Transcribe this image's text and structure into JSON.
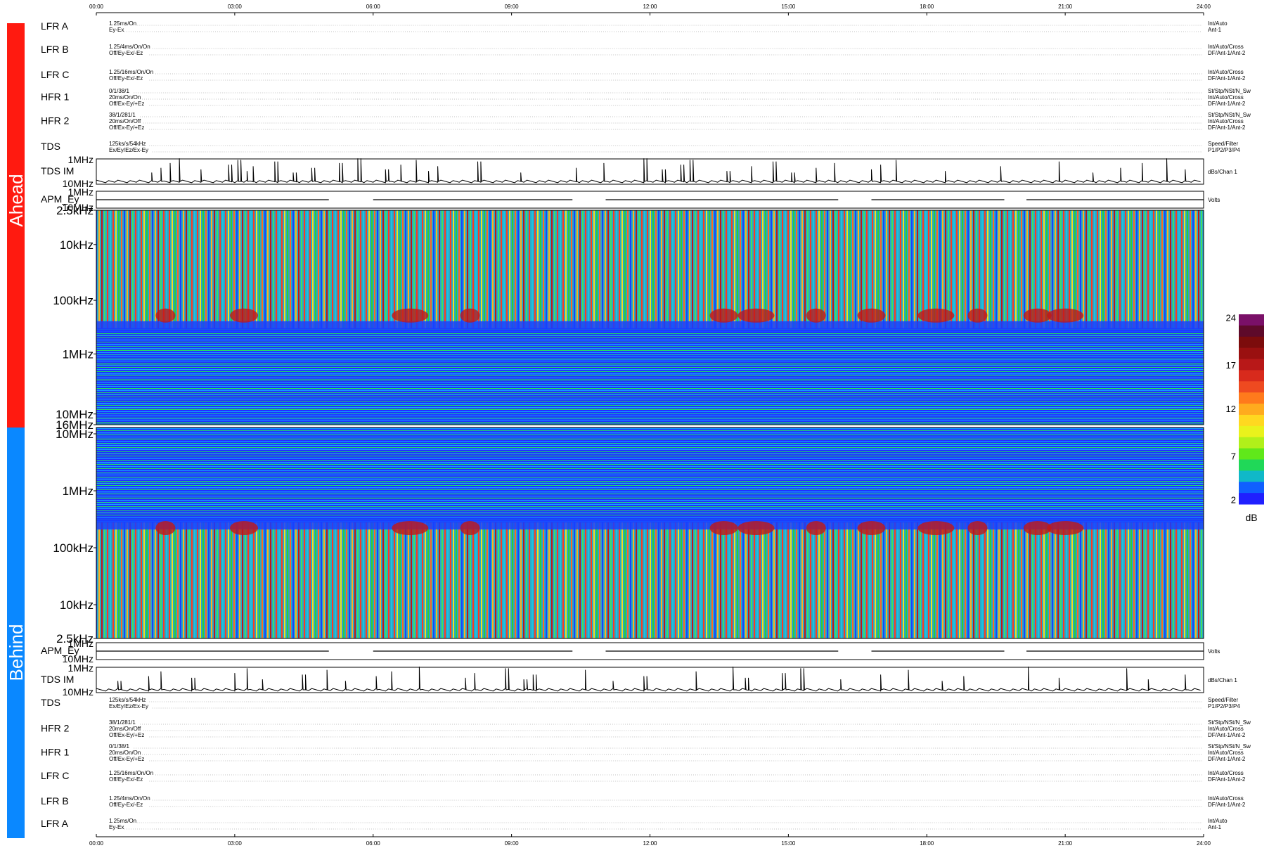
{
  "time_axis": {
    "ticks": [
      "00:00",
      "03:00",
      "06:00",
      "09:00",
      "12:00",
      "15:00",
      "18:00",
      "21:00",
      "24:00"
    ]
  },
  "sections": {
    "ahead": {
      "label": "Ahead",
      "color": "#ff1a10"
    },
    "behind": {
      "label": "Behind",
      "color": "#0a88ff"
    }
  },
  "instrument_rows": {
    "ahead": [
      {
        "name": "LFR A",
        "left": [
          "1.25ms/On",
          "Ey-Ex"
        ],
        "right": [
          "Int/Auto",
          "Ant-1"
        ]
      },
      {
        "name": "LFR B",
        "left": [
          "1.25/4ms/On/On",
          "Off/Ey-Ex/-Ez"
        ],
        "right": [
          "Int/Auto/Cross",
          "DF/Ant-1/Ant-2"
        ]
      },
      {
        "name": "LFR C",
        "left": [
          "1.25/16ms/On/On",
          "Off/Ey-Ex/-Ez"
        ],
        "right": [
          "Int/Auto/Cross",
          "DF/Ant-1/Ant-2"
        ]
      },
      {
        "name": "HFR 1",
        "left": [
          "0/1/38/1",
          "20ms/On/On",
          "Off/Ex-Ey/+Ez"
        ],
        "right": [
          "St/Stp/NSt/N_Sw",
          "Int/Auto/Cross",
          "DF/Ant-1/Ant-2"
        ]
      },
      {
        "name": "HFR 2",
        "left": [
          "38/1/281/1",
          "20ms/On/Off",
          "Off/Ex-Ey/+Ez"
        ],
        "right": [
          "St/Stp/NSt/N_Sw",
          "Int/Auto/Cross",
          "DF/Ant-1/Ant-2"
        ]
      },
      {
        "name": "TDS",
        "left": [
          "125ks/s/54kHz",
          "Ex/Ey/Ez/Ex-Ey"
        ],
        "right": [
          "Speed/Filter",
          "P1/P2/P3/P4"
        ]
      }
    ],
    "behind": [
      {
        "name": "TDS",
        "left": [
          "125ks/s/54kHz",
          "Ex/Ey/Ez/Ex-Ey"
        ],
        "right": [
          "Speed/Filter",
          "P1/P2/P3/P4"
        ]
      },
      {
        "name": "HFR 2",
        "left": [
          "38/1/281/1",
          "20ms/On/Off",
          "Off/Ex-Ey/+Ez"
        ],
        "right": [
          "St/Stp/NSt/N_Sw",
          "Int/Auto/Cross",
          "DF/Ant-1/Ant-2"
        ]
      },
      {
        "name": "HFR 1",
        "left": [
          "0/1/38/1",
          "20ms/On/On",
          "Off/Ex-Ey/+Ez"
        ],
        "right": [
          "St/Stp/NSt/N_Sw",
          "Int/Auto/Cross",
          "DF/Ant-1/Ant-2"
        ]
      },
      {
        "name": "LFR C",
        "left": [
          "1.25/16ms/On/On",
          "Off/Ey-Ex/-Ez"
        ],
        "right": [
          "Int/Auto/Cross",
          "DF/Ant-1/Ant-2"
        ]
      },
      {
        "name": "LFR B",
        "left": [
          "1.25/4ms/On/On",
          "Off/Ey-Ex/-Ez"
        ],
        "right": [
          "Int/Auto/Cross",
          "DF/Ant-1/Ant-2"
        ]
      },
      {
        "name": "LFR A",
        "left": [
          "1.25ms/On",
          "Ey-Ex"
        ],
        "right": [
          "Int/Auto",
          "Ant-1"
        ]
      }
    ]
  },
  "chart_data": [
    {
      "type": "line",
      "section": "ahead",
      "label": "TDS IM",
      "y_ticks": [
        "1MHz",
        "10MHz"
      ],
      "right_label": "dBs/Chan 1",
      "x": [
        "00:00",
        "24:00"
      ],
      "spike_hours": [
        1.2,
        1.4,
        1.6,
        1.8,
        2.3,
        2.9,
        3.1,
        3.3,
        3.4,
        3.9,
        4.3,
        4.7,
        5.3,
        5.7,
        6.3,
        6.6,
        6.9,
        7.2,
        7.4,
        8.3,
        9.2,
        10.4,
        11.0,
        11.9,
        12.3,
        12.7,
        12.9,
        13.7,
        14.2,
        14.7,
        15.1,
        15.6,
        16.0,
        16.5,
        16.8,
        17.0,
        17.3,
        18.4,
        19.6,
        20.9,
        21.6,
        22.2,
        22.7,
        23.2,
        23.6
      ]
    },
    {
      "type": "line",
      "section": "ahead",
      "label": "APM_Ey",
      "y_ticks": [
        "1MHz",
        "10MHz"
      ],
      "right_label": "Volts",
      "x": [
        "00:00",
        "24:00"
      ]
    },
    {
      "type": "heatmap",
      "section": "ahead",
      "y_ticks": [
        "2.5kHz",
        "10kHz",
        "100kHz",
        "1MHz",
        "10MHz",
        "16MHz"
      ],
      "x": [
        "00:00",
        "24:00"
      ]
    },
    {
      "type": "heatmap",
      "section": "behind",
      "y_ticks": [
        "10MHz",
        "1MHz",
        "100kHz",
        "10kHz",
        "2.5kHz"
      ],
      "x": [
        "00:00",
        "24:00"
      ]
    },
    {
      "type": "line",
      "section": "behind",
      "label": "APM_Ey",
      "y_ticks": [
        "1MHz",
        "10MHz"
      ],
      "right_label": "Volts",
      "x": [
        "00:00",
        "24:00"
      ]
    },
    {
      "type": "line",
      "section": "behind",
      "label": "TDS IM",
      "y_ticks": [
        "1MHz",
        "10MHz"
      ],
      "right_label": "dBs/Chan 1",
      "x": [
        "00:00",
        "24:00"
      ],
      "spike_hours": [
        0.5,
        1.1,
        1.4,
        1.5,
        2.1,
        3.0,
        3.3,
        3.6,
        4.5,
        5.0,
        5.4,
        6.1,
        6.4,
        7.0,
        8.0,
        8.2,
        8.9,
        9.3,
        9.5,
        10.6,
        11.2,
        11.9,
        13.0,
        13.8,
        14.1,
        14.9,
        15.3,
        16.1,
        17.0,
        17.6,
        18.3,
        18.8,
        19.5,
        20.2,
        20.9,
        21.5,
        22.3,
        22.8,
        23.6
      ]
    }
  ],
  "colorbar": {
    "ticks": [
      "24",
      "17",
      "12",
      "7",
      "2"
    ],
    "unit": "dB",
    "colors": [
      "#7a1068",
      "#5e0a2a",
      "#7c0c0c",
      "#9a1010",
      "#b81818",
      "#d82a1c",
      "#ee4a20",
      "#ff7a1c",
      "#ffab1e",
      "#ffd820",
      "#e9f21c",
      "#b0f01a",
      "#60e81a",
      "#20d858",
      "#10b8c8",
      "#1060ff",
      "#2020ff"
    ]
  }
}
